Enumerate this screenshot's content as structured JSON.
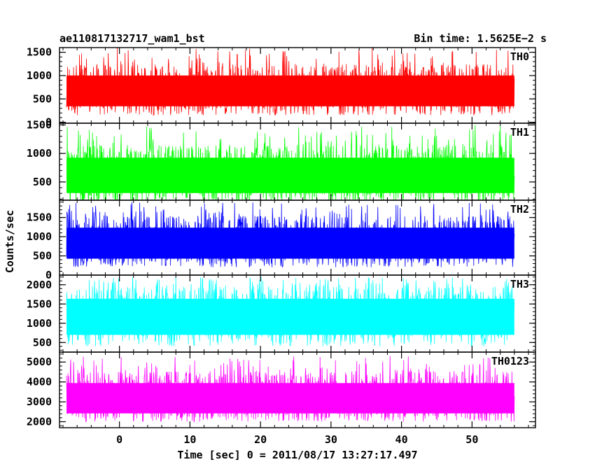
{
  "header": {
    "title": "ae110817132717_wam1_bst",
    "bin_time": "Bin time: 1.5625E−2 s"
  },
  "chart_data": {
    "type": "line",
    "xlabel": "Time [sec] 0 = 2011/08/17 13:27:17.497",
    "ylabel": "Counts/sec",
    "xlim": [
      -8.5,
      59
    ],
    "data_range": [
      -7.5,
      56
    ],
    "x_ticks": [
      0,
      10,
      20,
      30,
      40,
      50
    ],
    "x_tick_labels": [
      "0",
      "10",
      "20",
      "30",
      "40",
      "50"
    ],
    "panels": [
      {
        "name": "TH0",
        "color": "#ff0000",
        "ylim": [
          -20,
          1600
        ],
        "y_ticks": [
          0,
          500,
          1000,
          1500
        ],
        "y_tick_labels": [
          "0",
          "500",
          "1000",
          "1500"
        ],
        "baseline": 150,
        "center": 700,
        "upper": 1250,
        "spike_max": 1600
      },
      {
        "name": "TH1",
        "color": "#00ff00",
        "ylim": [
          180,
          1530
        ],
        "y_ticks": [
          500,
          1000,
          1500
        ],
        "y_tick_labels": [
          "500",
          "1000",
          "1500"
        ],
        "baseline": 120,
        "center": 650,
        "upper": 1150,
        "spike_max": 1500
      },
      {
        "name": "TH2",
        "color": "#0000ff",
        "ylim": [
          0,
          1950
        ],
        "y_ticks": [
          0,
          500,
          1000,
          1500
        ],
        "y_tick_labels": [
          "0",
          "500",
          "1000",
          "1500"
        ],
        "baseline": 200,
        "center": 850,
        "upper": 1550,
        "spike_max": 1900
      },
      {
        "name": "TH3",
        "color": "#00ffff",
        "ylim": [
          250,
          2250
        ],
        "y_ticks": [
          500,
          1000,
          1500,
          2000
        ],
        "y_tick_labels": [
          "500",
          "1000",
          "1500",
          "2000"
        ],
        "baseline": 400,
        "center": 1250,
        "upper": 1950,
        "spike_max": 2200
      },
      {
        "name": "TH0123",
        "color": "#ff00ff",
        "ylim": [
          1700,
          5500
        ],
        "y_ticks": [
          2000,
          3000,
          4000,
          5000
        ],
        "y_tick_labels": [
          "2000",
          "3000",
          "4000",
          "5000"
        ],
        "baseline": 2000,
        "center": 3200,
        "upper": 4550,
        "spike_max": 5300
      }
    ]
  }
}
